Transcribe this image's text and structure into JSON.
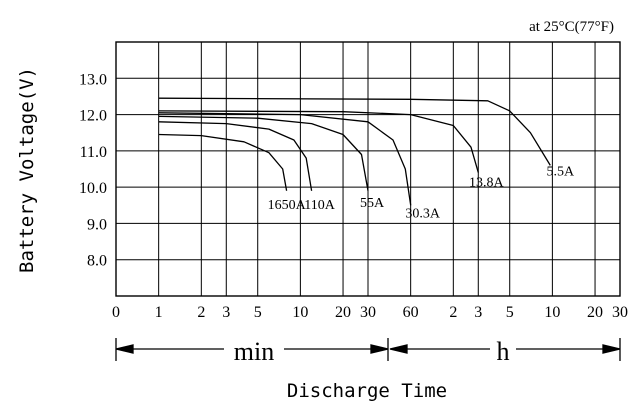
{
  "chart_data": {
    "type": "line",
    "note": "at 25°C(77°F)",
    "ylabel": "Battery Voltage(V)",
    "xlabel": "Discharge Time",
    "x_axis_scale": "log",
    "y_tick_labels": [
      "13.0",
      "12.0",
      "11.0",
      "10.0",
      "9.0",
      "8.0"
    ],
    "y_tick_values": [
      13.0,
      12.0,
      11.0,
      10.0,
      9.0,
      8.0
    ],
    "ylim": [
      7.0,
      14.0
    ],
    "x_tick_labels": [
      "0",
      "1",
      "2",
      "3",
      "5",
      "10",
      "20",
      "30",
      "60",
      "2",
      "3",
      "5",
      "10",
      "20",
      "30"
    ],
    "x_tick_minutes": [
      0.5,
      1,
      2,
      3,
      5,
      10,
      20,
      30,
      60,
      120,
      180,
      300,
      600,
      1200,
      1800
    ],
    "xlim_minutes": [
      0.5,
      1800
    ],
    "unit_labels": [
      "min",
      "h"
    ],
    "grid": true,
    "series": [
      {
        "name": "1650A",
        "points": [
          [
            1,
            11.45
          ],
          [
            2,
            11.42
          ],
          [
            4,
            11.25
          ],
          [
            6,
            10.95
          ],
          [
            7.5,
            10.5
          ],
          [
            8,
            9.9
          ]
        ]
      },
      {
        "name": "110A",
        "points": [
          [
            1,
            11.8
          ],
          [
            3,
            11.75
          ],
          [
            6,
            11.6
          ],
          [
            9,
            11.3
          ],
          [
            11,
            10.8
          ],
          [
            12,
            9.9
          ]
        ]
      },
      {
        "name": "55A",
        "points": [
          [
            1,
            11.95
          ],
          [
            5,
            11.9
          ],
          [
            12,
            11.75
          ],
          [
            20,
            11.45
          ],
          [
            27,
            10.9
          ],
          [
            30,
            9.9
          ]
        ]
      },
      {
        "name": "30.3A",
        "points": [
          [
            1,
            12.05
          ],
          [
            10,
            12.0
          ],
          [
            30,
            11.8
          ],
          [
            45,
            11.3
          ],
          [
            55,
            10.5
          ],
          [
            60,
            9.5
          ]
        ]
      },
      {
        "name": "13.8A",
        "points": [
          [
            1,
            12.1
          ],
          [
            20,
            12.08
          ],
          [
            60,
            12.0
          ],
          [
            120,
            11.7
          ],
          [
            160,
            11.1
          ],
          [
            180,
            10.4
          ]
        ]
      },
      {
        "name": "5.5A",
        "points": [
          [
            1,
            12.45
          ],
          [
            60,
            12.42
          ],
          [
            210,
            12.38
          ],
          [
            300,
            12.1
          ],
          [
            420,
            11.5
          ],
          [
            580,
            10.6
          ]
        ]
      }
    ],
    "series_labels": [
      "1650A",
      "110A",
      "55A",
      "30.3A",
      "13.8A",
      "5.5A"
    ]
  }
}
